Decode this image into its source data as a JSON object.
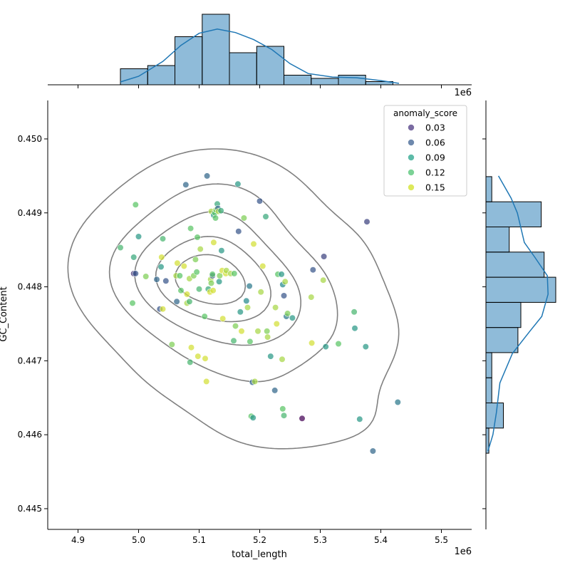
{
  "chart_data": {
    "type": "scatter",
    "subtype": "jointplot with kde contours and marginal histograms",
    "xlabel": "total_length",
    "ylabel": "GC_Content",
    "x_offset_label": "1e6",
    "top_offset_label": "1e6",
    "xlim": [
      4.85,
      5.55
    ],
    "ylim": [
      0.44472,
      0.45052
    ],
    "x_ticks": [
      "4.9",
      "5.0",
      "5.1",
      "5.2",
      "5.3",
      "5.4",
      "5.5"
    ],
    "y_ticks": [
      "0.445",
      "0.446",
      "0.447",
      "0.448",
      "0.449",
      "0.450"
    ],
    "legend": {
      "title": "anomaly_score",
      "placement": "top-right",
      "entries": [
        {
          "label": "0.03",
          "color": "#46327e"
        },
        {
          "label": "0.06",
          "color": "#365c8d"
        },
        {
          "label": "0.09",
          "color": "#1fa187"
        },
        {
          "label": "0.12",
          "color": "#4ac16d"
        },
        {
          "label": "0.15",
          "color": "#d0e11c"
        }
      ]
    },
    "points": [
      [
        4.97,
        0.44853,
        0.11
      ],
      [
        4.992,
        0.44818,
        0.03
      ],
      [
        4.995,
        0.44818,
        0.05
      ],
      [
        4.995,
        0.44911,
        0.12
      ],
      [
        4.99,
        0.44778,
        0.12
      ],
      [
        4.992,
        0.4484,
        0.1
      ],
      [
        5.0,
        0.44868,
        0.09
      ],
      [
        5.012,
        0.44814,
        0.13
      ],
      [
        5.03,
        0.4481,
        0.06
      ],
      [
        5.035,
        0.4477,
        0.05
      ],
      [
        5.037,
        0.44827,
        0.09
      ],
      [
        5.038,
        0.4484,
        0.15
      ],
      [
        5.04,
        0.44865,
        0.11
      ],
      [
        5.04,
        0.4477,
        0.15
      ],
      [
        5.045,
        0.44808,
        0.05
      ],
      [
        5.055,
        0.44722,
        0.13
      ],
      [
        5.062,
        0.44815,
        0.14
      ],
      [
        5.063,
        0.4478,
        0.06
      ],
      [
        5.064,
        0.44832,
        0.15
      ],
      [
        5.068,
        0.44815,
        0.12
      ],
      [
        5.07,
        0.44795,
        0.12
      ],
      [
        5.075,
        0.44828,
        0.15
      ],
      [
        5.078,
        0.44938,
        0.06
      ],
      [
        5.08,
        0.44778,
        0.14
      ],
      [
        5.08,
        0.4479,
        0.15
      ],
      [
        5.084,
        0.44811,
        0.14
      ],
      [
        5.084,
        0.4478,
        0.11
      ],
      [
        5.085,
        0.44698,
        0.11
      ],
      [
        5.086,
        0.44879,
        0.12
      ],
      [
        5.087,
        0.44718,
        0.15
      ],
      [
        5.091,
        0.44815,
        0.13
      ],
      [
        5.094,
        0.44837,
        0.13
      ],
      [
        5.096,
        0.4482,
        0.12
      ],
      [
        5.097,
        0.44867,
        0.12
      ],
      [
        5.098,
        0.44706,
        0.15
      ],
      [
        5.1,
        0.44797,
        0.11
      ],
      [
        5.102,
        0.44851,
        0.14
      ],
      [
        5.109,
        0.4476,
        0.12
      ],
      [
        5.11,
        0.44703,
        0.15
      ],
      [
        5.112,
        0.44672,
        0.15
      ],
      [
        5.113,
        0.4495,
        0.06
      ],
      [
        5.115,
        0.44797,
        0.1
      ],
      [
        5.118,
        0.44793,
        0.15
      ],
      [
        5.119,
        0.4481,
        0.14
      ],
      [
        5.12,
        0.44805,
        0.13
      ],
      [
        5.12,
        0.44902,
        0.14
      ],
      [
        5.122,
        0.44815,
        0.05
      ],
      [
        5.122,
        0.44817,
        0.12
      ],
      [
        5.123,
        0.44795,
        0.15
      ],
      [
        5.124,
        0.4486,
        0.15
      ],
      [
        5.124,
        0.44897,
        0.09
      ],
      [
        5.126,
        0.449,
        0.12
      ],
      [
        5.127,
        0.44893,
        0.12
      ],
      [
        5.128,
        0.44904,
        0.13
      ],
      [
        5.13,
        0.44912,
        0.1
      ],
      [
        5.131,
        0.44906,
        0.06
      ],
      [
        5.132,
        0.44902,
        0.14
      ],
      [
        5.133,
        0.44807,
        0.09
      ],
      [
        5.134,
        0.44815,
        0.13
      ],
      [
        5.136,
        0.44903,
        0.1
      ],
      [
        5.137,
        0.44849,
        0.09
      ],
      [
        5.138,
        0.44822,
        0.15
      ],
      [
        5.139,
        0.44757,
        0.15
      ],
      [
        5.144,
        0.44818,
        0.15
      ],
      [
        5.145,
        0.44822,
        0.14
      ],
      [
        5.152,
        0.44818,
        0.14
      ],
      [
        5.157,
        0.44727,
        0.11
      ],
      [
        5.158,
        0.44818,
        0.12
      ],
      [
        5.16,
        0.44747,
        0.13
      ],
      [
        5.164,
        0.44939,
        0.09
      ],
      [
        5.165,
        0.44875,
        0.05
      ],
      [
        5.168,
        0.44766,
        0.09
      ],
      [
        5.17,
        0.4474,
        0.15
      ],
      [
        5.174,
        0.44893,
        0.13
      ],
      [
        5.178,
        0.44781,
        0.08
      ],
      [
        5.18,
        0.44772,
        0.14
      ],
      [
        5.183,
        0.44801,
        0.07
      ],
      [
        5.184,
        0.44726,
        0.12
      ],
      [
        5.186,
        0.44625,
        0.12
      ],
      [
        5.188,
        0.44671,
        0.06
      ],
      [
        5.189,
        0.44623,
        0.09
      ],
      [
        5.19,
        0.44858,
        0.15
      ],
      [
        5.192,
        0.44672,
        0.14
      ],
      [
        5.197,
        0.4474,
        0.14
      ],
      [
        5.2,
        0.44916,
        0.05
      ],
      [
        5.202,
        0.44793,
        0.14
      ],
      [
        5.205,
        0.44828,
        0.15
      ],
      [
        5.21,
        0.44895,
        0.1
      ],
      [
        5.212,
        0.4474,
        0.13
      ],
      [
        5.213,
        0.44732,
        0.14
      ],
      [
        5.218,
        0.44706,
        0.09
      ],
      [
        5.225,
        0.4466,
        0.06
      ],
      [
        5.226,
        0.44772,
        0.14
      ],
      [
        5.228,
        0.4475,
        0.15
      ],
      [
        5.23,
        0.44817,
        0.12
      ],
      [
        5.236,
        0.44817,
        0.09
      ],
      [
        5.237,
        0.44702,
        0.14
      ],
      [
        5.238,
        0.44803,
        0.08
      ],
      [
        5.238,
        0.44635,
        0.12
      ],
      [
        5.24,
        0.44626,
        0.11
      ],
      [
        5.24,
        0.44788,
        0.05
      ],
      [
        5.242,
        0.44807,
        0.14
      ],
      [
        5.244,
        0.4476,
        0.07
      ],
      [
        5.246,
        0.44764,
        0.13
      ],
      [
        5.254,
        0.44758,
        0.09
      ],
      [
        5.27,
        0.44622,
        0.01
      ],
      [
        5.285,
        0.44786,
        0.14
      ],
      [
        5.286,
        0.44724,
        0.15
      ],
      [
        5.288,
        0.44823,
        0.05
      ],
      [
        5.305,
        0.44809,
        0.14
      ],
      [
        5.306,
        0.44841,
        0.04
      ],
      [
        5.309,
        0.44719,
        0.09
      ],
      [
        5.33,
        0.44723,
        0.12
      ],
      [
        5.356,
        0.44766,
        0.11
      ],
      [
        5.357,
        0.44744,
        0.09
      ],
      [
        5.365,
        0.44621,
        0.09
      ],
      [
        5.375,
        0.44719,
        0.09
      ],
      [
        5.377,
        0.44888,
        0.04
      ],
      [
        5.387,
        0.44578,
        0.06
      ],
      [
        5.428,
        0.44644,
        0.07
      ]
    ],
    "x_marginal_hist": {
      "bin_edges": [
        4.97,
        5.015,
        5.06,
        5.105,
        5.15,
        5.195,
        5.24,
        5.285,
        5.33,
        5.375,
        5.42
      ],
      "counts": [
        5,
        6,
        15,
        22,
        10,
        12,
        3,
        2,
        3,
        1
      ]
    },
    "y_marginal_hist": {
      "bin_edges": [
        0.44575,
        0.44609,
        0.44643,
        0.44677,
        0.44711,
        0.44745,
        0.44779,
        0.44813,
        0.44847,
        0.44881,
        0.44915,
        0.44949
      ],
      "counts": [
        1,
        6,
        2,
        2,
        11,
        12,
        24,
        20,
        8,
        19,
        2
      ]
    },
    "x_kde": [
      [
        4.97,
        0.04
      ],
      [
        5.0,
        0.12
      ],
      [
        5.04,
        0.33
      ],
      [
        5.07,
        0.56
      ],
      [
        5.1,
        0.73
      ],
      [
        5.13,
        0.79
      ],
      [
        5.16,
        0.74
      ],
      [
        5.19,
        0.64
      ],
      [
        5.22,
        0.5
      ],
      [
        5.25,
        0.3
      ],
      [
        5.28,
        0.16
      ],
      [
        5.32,
        0.11
      ],
      [
        5.36,
        0.1
      ],
      [
        5.4,
        0.06
      ],
      [
        5.43,
        0.02
      ]
    ],
    "y_kde": [
      [
        0.44578,
        0.03
      ],
      [
        0.446,
        0.1
      ],
      [
        0.4463,
        0.15
      ],
      [
        0.4467,
        0.2
      ],
      [
        0.4471,
        0.38
      ],
      [
        0.4474,
        0.63
      ],
      [
        0.4476,
        0.8
      ],
      [
        0.4479,
        0.89
      ],
      [
        0.44815,
        0.88
      ],
      [
        0.4484,
        0.7
      ],
      [
        0.4486,
        0.55
      ],
      [
        0.4488,
        0.5
      ],
      [
        0.449,
        0.45
      ],
      [
        0.4492,
        0.36
      ],
      [
        0.4495,
        0.18
      ]
    ]
  }
}
